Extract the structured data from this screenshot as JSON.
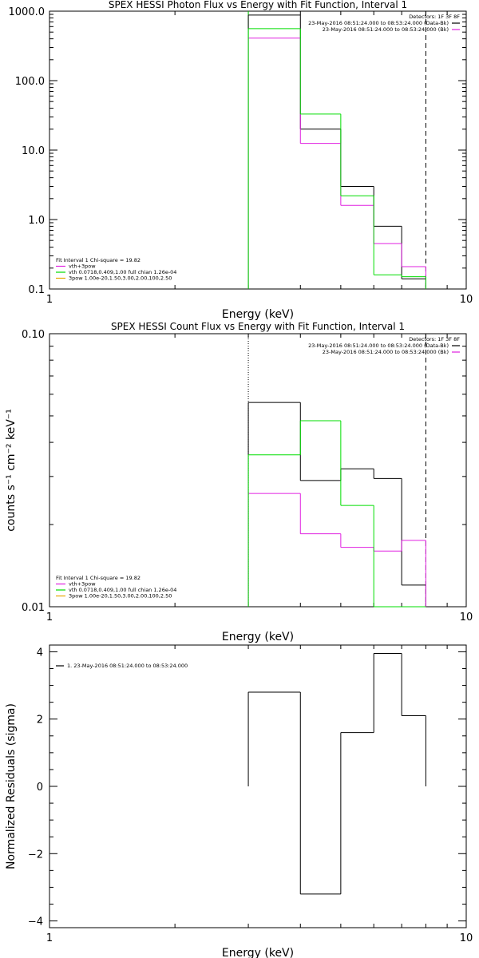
{
  "chart_data": [
    {
      "type": "line",
      "title": "SPEX HESSI Photon Flux vs Energy with Fit Function, Interval 1",
      "xlabel": "Energy (keV)",
      "ylabel": "",
      "x_scale": "log",
      "y_scale": "log",
      "xlim": [
        1,
        10
      ],
      "ylim": [
        0.1,
        1000
      ],
      "x_ticks": [
        "1",
        "10"
      ],
      "y_ticks": [
        "0.1",
        "1.0",
        "10.0",
        "100.0",
        "1000.0"
      ],
      "bin_edges": [
        3.0,
        4.0,
        5.0,
        6.0,
        7.0,
        8.0
      ],
      "series": [
        {
          "name": "23-May-2016 08:51:24.000 to 08:53:24.000 (Data-Bk)",
          "color": "#000000",
          "values": [
            880,
            20,
            3.0,
            0.8,
            0.14
          ]
        },
        {
          "name": "23-May-2016 08:51:24.000 to 08:53:24.000 (Bk)",
          "color": "#e020e0",
          "values": [
            410,
            12.5,
            1.6,
            0.45,
            0.21
          ]
        },
        {
          "name": "",
          "color": "#00dd00",
          "values": [
            560,
            33,
            2.2,
            0.16,
            0.15
          ]
        }
      ],
      "vlines": [
        {
          "x": 3.0,
          "style": "solid",
          "color": "#00dd00"
        },
        {
          "x": 8.0,
          "style": "dashed",
          "color": "#000000"
        }
      ],
      "legend_top_right": {
        "header": "Detectors: 1F 3F 8F",
        "entries": [
          {
            "text": "23-May-2016 08:51:24.000 to 08:53:24.000 (Data-Bk)",
            "color": "#000000"
          },
          {
            "text": "23-May-2016 08:51:24.000 to 08:53:24.000 (Bk)",
            "color": "#e020e0"
          }
        ]
      },
      "legend_bottom_left": {
        "header": "Fit Interval 1   Chi-square = 19.82",
        "entries": [
          {
            "text": "vth+3pow",
            "color": "#e020e0"
          },
          {
            "text": "vth 0.0718,0.409,1.00  full chian 1.26e-04",
            "color": "#00dd00"
          },
          {
            "text": "3pow 1.00e-20,1.50,3.00,2.00,100,2.50",
            "color": "#e6a800"
          }
        ]
      }
    },
    {
      "type": "line",
      "title": "SPEX HESSI Count Flux vs Energy with Fit Function, Interval 1",
      "xlabel": "Energy (keV)",
      "ylabel": "counts s⁻¹ cm⁻² keV⁻¹",
      "x_scale": "log",
      "y_scale": "log",
      "xlim": [
        1,
        10
      ],
      "ylim": [
        0.01,
        0.1
      ],
      "x_ticks": [
        "1",
        "10"
      ],
      "y_ticks": [
        "0.01",
        "0.10"
      ],
      "bin_edges": [
        3.0,
        4.0,
        5.0,
        6.0,
        7.0,
        8.0
      ],
      "series": [
        {
          "name": "23-May-2016 08:51:24.000 to 08:53:24.000 (Data-Bk)",
          "color": "#000000",
          "values": [
            0.056,
            0.029,
            0.032,
            0.0295,
            0.012
          ]
        },
        {
          "name": "23-May-2016 08:51:24.000 to 08:53:24.000 (Bk)",
          "color": "#e020e0",
          "values": [
            0.026,
            0.0185,
            0.0165,
            0.016,
            0.0175
          ]
        },
        {
          "name": "",
          "color": "#00dd00",
          "values": [
            0.036,
            0.048,
            0.0235,
            0.0095,
            0.0095
          ]
        }
      ],
      "vlines": [
        {
          "x": 3.0,
          "style": "dotted",
          "color": "#000000"
        },
        {
          "x": 8.0,
          "style": "dashed",
          "color": "#000000"
        }
      ],
      "legend_top_right": {
        "header": "Detectors: 1F 3F 8F",
        "entries": [
          {
            "text": "23-May-2016 08:51:24.000 to 08:53:24.000 (Data-Bk)",
            "color": "#000000"
          },
          {
            "text": "23-May-2016 08:51:24.000 to 08:53:24.000 (Bk)",
            "color": "#e020e0"
          }
        ]
      },
      "legend_bottom_left": {
        "header": "Fit Interval 1   Chi-square = 19.82",
        "entries": [
          {
            "text": "vth+3pow",
            "color": "#e020e0"
          },
          {
            "text": "vth 0.0718,0.409,1.00  full chian 1.26e-04",
            "color": "#00dd00"
          },
          {
            "text": "3pow 1.00e-20,1.50,3.00,2.00,100,2.50",
            "color": "#e6a800"
          }
        ]
      }
    },
    {
      "type": "line",
      "title": "",
      "xlabel": "Energy (keV)",
      "ylabel": "Normalized Residuals (sigma)",
      "x_scale": "log",
      "y_scale": "linear",
      "xlim": [
        1,
        10
      ],
      "ylim": [
        -4.2,
        4.2
      ],
      "x_ticks": [
        "1",
        "10"
      ],
      "y_ticks": [
        "−4",
        "−2",
        "0",
        "2",
        "4"
      ],
      "bin_edges": [
        3.0,
        4.0,
        5.0,
        6.0,
        7.0,
        8.0
      ],
      "series": [
        {
          "name": "1. 23-May-2016 08:51:24.000 to 08:53:24.000",
          "color": "#000000",
          "values": [
            2.8,
            -3.2,
            1.6,
            3.95,
            2.1
          ]
        }
      ],
      "vlines": [],
      "legend_top_left": {
        "entries": [
          {
            "text": "1. 23-May-2016 08:51:24.000 to 08:53:24.000",
            "color": "#000000"
          }
        ]
      }
    }
  ]
}
